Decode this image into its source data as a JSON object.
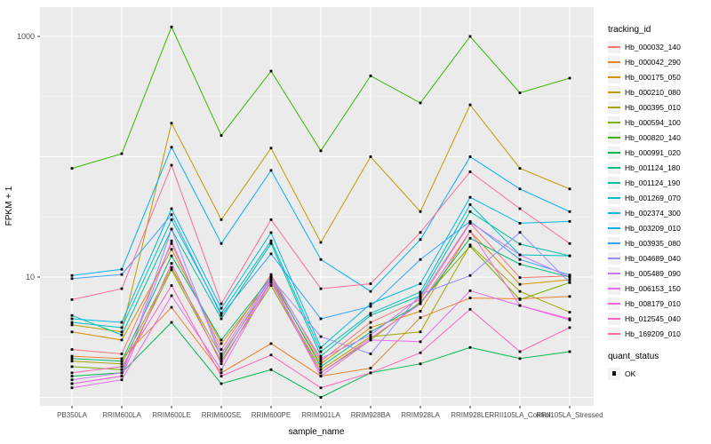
{
  "figure_title": "",
  "axes": {
    "x_title": "sample_name",
    "y_title": "FPKM + 1",
    "y_tick_labels": [
      "1000",
      "10"
    ]
  },
  "legend": {
    "tracking_title": "tracking_id",
    "quant_title": "quant_status",
    "quant_items": [
      {
        "label": "OK",
        "marker": "black-square"
      }
    ]
  },
  "colors": {
    "panel_bg": "#EBEBEB",
    "grid_major": "#FFFFFF",
    "grid_minor": "#F5F5F5",
    "tick_label": "#4D4D4D",
    "axis_title": "#000000",
    "point": "#000000",
    "legend_key_bg": "#F2F2F2"
  },
  "chart_data": {
    "type": "line",
    "title": "",
    "xlabel": "sample_name",
    "ylabel": "FPKM + 1",
    "y_scale": "log10",
    "y_ticks_labeled": [
      10,
      1000
    ],
    "y_gridlines_major": [
      1,
      10,
      100,
      1000
    ],
    "y_gridlines_minor": [
      3.162,
      31.62,
      316.2
    ],
    "ylim_approx": [
      1,
      1800
    ],
    "grid": true,
    "legend_position": "right",
    "point_marker": "black-square",
    "categories": [
      "PB350LA",
      "RRIM600LA",
      "RRIM600LE",
      "RRIM600SE",
      "RRIM600PE",
      "RRIM901LA",
      "RRIM928BA",
      "RRIM928LA",
      "RRIM928LE",
      "RRII105LA_Control",
      "RRII105LA_Stressed"
    ],
    "series": [
      {
        "name": "Hb_000032_140",
        "color": "#F8766D",
        "values": [
          2.5,
          2.3,
          19,
          2.5,
          10.5,
          2.0,
          4.2,
          6.5,
          28,
          9.9,
          10.2
        ]
      },
      {
        "name": "Hb_000042_290",
        "color": "#EA8331",
        "values": [
          2.2,
          2.1,
          5.6,
          1.6,
          2.8,
          1.5,
          1.75,
          4.6,
          6.7,
          6.6,
          6.9
        ]
      },
      {
        "name": "Hb_000175_050",
        "color": "#D89000",
        "values": [
          3.5,
          3.0,
          17,
          2.8,
          9.5,
          1.9,
          3.8,
          5.2,
          24,
          8.7,
          9.5
        ]
      },
      {
        "name": "Hb_000210_080",
        "color": "#C09B00",
        "values": [
          4.0,
          3.5,
          190,
          30,
          118,
          19.4,
          100,
          35,
          270,
          80,
          54
        ]
      },
      {
        "name": "Hb_000395_010",
        "color": "#A3A500",
        "values": [
          2.0,
          1.9,
          12,
          2.2,
          9.0,
          1.7,
          3.2,
          3.5,
          18.5,
          7.6,
          5.1
        ]
      },
      {
        "name": "Hb_000594_100",
        "color": "#7CAE00",
        "values": [
          1.8,
          1.7,
          11.5,
          2.0,
          8.5,
          1.6,
          3.0,
          6.2,
          18,
          6.5,
          9.0
        ]
      },
      {
        "name": "Hb_000820_140",
        "color": "#39B600",
        "values": [
          80,
          106,
          1200,
          150,
          515,
          112,
          470,
          280,
          1000,
          340,
          450
        ]
      },
      {
        "name": "Hb_000991_020",
        "color": "#00BB4E",
        "values": [
          1.5,
          1.6,
          4.2,
          1.3,
          1.7,
          1.0,
          1.6,
          1.9,
          2.6,
          2.1,
          2.4
        ]
      },
      {
        "name": "Hb_001124_180",
        "color": "#00BF7D",
        "values": [
          2.1,
          2.0,
          15,
          3.0,
          10,
          1.8,
          3.5,
          6.0,
          21,
          12.8,
          10
        ]
      },
      {
        "name": "Hb_001124_190",
        "color": "#00C1A3",
        "values": [
          4.8,
          3.3,
          25,
          4.5,
          19,
          2.2,
          4.8,
          7.0,
          35,
          18.8,
          15
        ]
      },
      {
        "name": "Hb_001269_070",
        "color": "#00BFC4",
        "values": [
          4.2,
          3.8,
          30,
          5.0,
          20,
          2.4,
          5.0,
          7.5,
          40,
          15.3,
          15
        ]
      },
      {
        "name": "Hb_002374_300",
        "color": "#00BAE0",
        "values": [
          4.5,
          4.2,
          37,
          5.5,
          23.4,
          2.6,
          6.0,
          8.8,
          46,
          28,
          29
        ]
      },
      {
        "name": "Hb_003209_010",
        "color": "#00B0F6",
        "values": [
          10.3,
          11.6,
          120,
          19,
          77,
          14,
          7.6,
          20.5,
          100,
          54,
          35
        ]
      },
      {
        "name": "Hb_003935_080",
        "color": "#35A2FF",
        "values": [
          9.7,
          10.5,
          33,
          4.8,
          15.6,
          4.5,
          5.7,
          14,
          29,
          14,
          10.4
        ]
      },
      {
        "name": "Hb_004689_040",
        "color": "#9590FF",
        "values": [
          1.3,
          1.5,
          25,
          2.1,
          9.8,
          3.2,
          2.3,
          7.2,
          10.3,
          23.5,
          9.0
        ]
      },
      {
        "name": "Hb_005489_090",
        "color": "#C77CFF",
        "values": [
          1.4,
          1.6,
          20,
          2.3,
          10,
          2.1,
          3.3,
          6.8,
          28.5,
          15.3,
          10
        ]
      },
      {
        "name": "Hb_006153_150",
        "color": "#E76BF3",
        "values": [
          1.2,
          1.4,
          7.0,
          1.7,
          9.2,
          1.5,
          3.0,
          2.9,
          7.7,
          5.8,
          4.4
        ]
      },
      {
        "name": "Hb_008179_010",
        "color": "#FA62DB",
        "values": [
          1.3,
          1.5,
          13,
          1.9,
          9.4,
          1.6,
          3.1,
          6.0,
          24,
          5.8,
          4.5
        ]
      },
      {
        "name": "Hb_012545_040",
        "color": "#FF62BC",
        "values": [
          1.6,
          1.8,
          8.5,
          1.5,
          2.25,
          1.2,
          1.6,
          2.35,
          5.4,
          2.4,
          3.8
        ]
      },
      {
        "name": "Hb_169209_010",
        "color": "#FF6A98",
        "values": [
          6.5,
          8.0,
          85,
          6.0,
          30,
          8.0,
          8.8,
          23.5,
          75,
          37,
          19
        ]
      }
    ]
  }
}
